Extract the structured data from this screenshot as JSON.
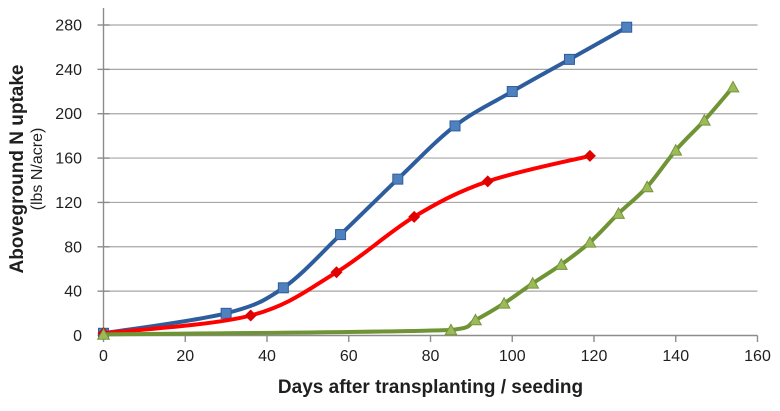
{
  "chart_data": {
    "type": "line",
    "title": "",
    "xlabel": "Days after transplanting / seeding",
    "ylabel": "Aboveground N uptake",
    "ylabel_sub": "(lbs N/acre)",
    "xlim": [
      0,
      160
    ],
    "ylim": [
      0,
      280
    ],
    "x_ticks": [
      0,
      20,
      40,
      60,
      80,
      100,
      120,
      140,
      160
    ],
    "y_ticks": [
      0,
      40,
      80,
      120,
      160,
      200,
      240,
      280
    ],
    "grid": "horizontal",
    "legend_position": "none",
    "line_smoothing": true,
    "axis_color": "#8c8c8c",
    "gridline_color": "#a6a6a6",
    "text_color": "#1f1f1f",
    "series": [
      {
        "name": "blue-squares",
        "marker": "square",
        "line_color": "#2e5d9e",
        "marker_color": "#4e81bd",
        "marker_edge": "#2e5d9e",
        "x": [
          0,
          30,
          44,
          58,
          72,
          86,
          100,
          114,
          128
        ],
        "y": [
          2,
          20,
          43,
          91,
          141,
          189,
          220,
          249,
          278
        ]
      },
      {
        "name": "red-diamonds",
        "marker": "diamond",
        "line_color": "#fe0000",
        "marker_color": "#df0000",
        "marker_edge": "#c00000",
        "x": [
          0,
          36,
          57,
          76,
          94,
          119
        ],
        "y": [
          2,
          18,
          57,
          107,
          139,
          162
        ]
      },
      {
        "name": "green-triangles",
        "marker": "triangle",
        "line_color": "#6f9435",
        "marker_color": "#9bbb59",
        "marker_edge": "#77933c",
        "x": [
          0,
          85,
          91,
          98,
          105,
          112,
          119,
          126,
          133,
          140,
          147,
          154
        ],
        "y": [
          1,
          5,
          14,
          29,
          47,
          64,
          84,
          110,
          134,
          167,
          194,
          224
        ]
      }
    ]
  }
}
